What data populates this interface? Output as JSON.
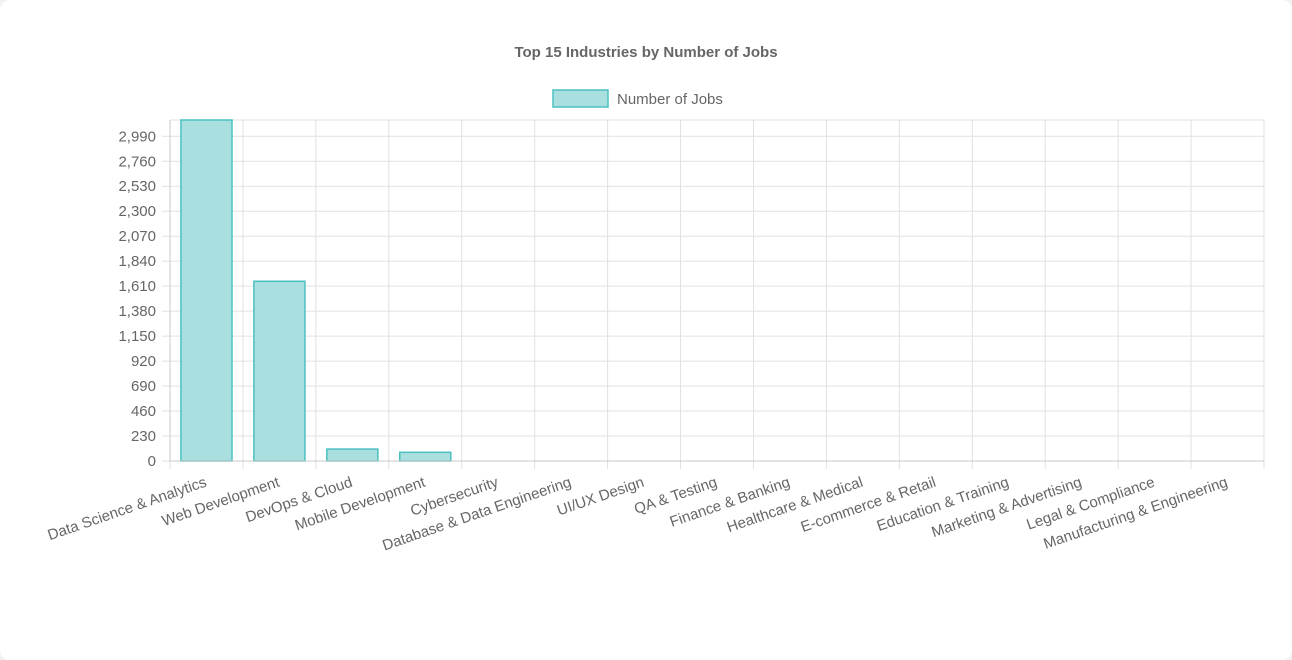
{
  "chart_data": {
    "type": "bar",
    "title": "Top 15 Industries by Number of Jobs",
    "legend": {
      "position": "top",
      "label": "Number of Jobs"
    },
    "colors": {
      "bar_fill": "#aadfe0",
      "bar_stroke": "#4bc0c0"
    },
    "categories": [
      "Data Science & Analytics",
      "Web Development",
      "DevOps & Cloud",
      "Mobile Development",
      "Cybersecurity",
      "Database & Data Engineering",
      "UI/UX Design",
      "QA & Testing",
      "Finance & Banking",
      "Healthcare & Medical",
      "E-commerce & Retail",
      "Education & Training",
      "Marketing & Advertising",
      "Legal & Compliance",
      "Manufacturing & Engineering"
    ],
    "series": [
      {
        "name": "Number of Jobs",
        "values": [
          3140,
          1655,
          110,
          80,
          0,
          0,
          0,
          0,
          0,
          0,
          0,
          0,
          0,
          0,
          0
        ]
      }
    ],
    "yticks": [
      "0",
      "230",
      "460",
      "690",
      "920",
      "1,150",
      "1,380",
      "1,610",
      "1,840",
      "2,070",
      "2,300",
      "2,530",
      "2,760",
      "2,990"
    ],
    "ylim": [
      0,
      3140
    ],
    "grid": true,
    "xlabel": "",
    "ylabel": ""
  }
}
